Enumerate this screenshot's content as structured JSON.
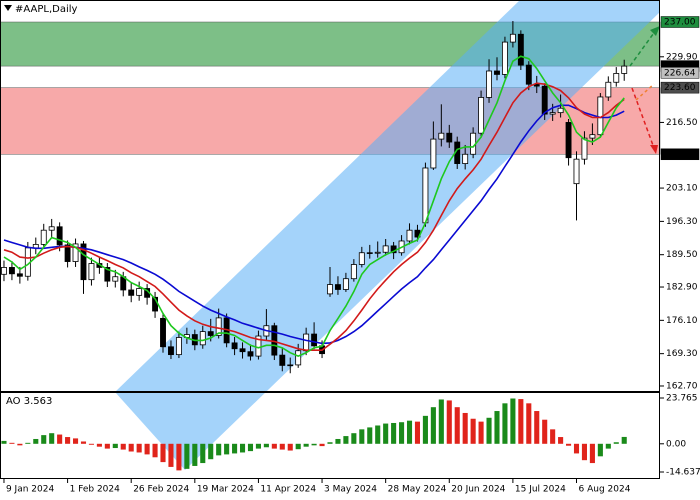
{
  "chart_data": [
    {
      "type": "candlestick",
      "title": "#AAPL,Daily",
      "xlim": [
        -0.5,
        82.5
      ],
      "xticks": [
        {
          "value": 0,
          "label": "9 Jan 2024"
        },
        {
          "value": 8,
          "label": "1 Feb 2024"
        },
        {
          "value": 16,
          "label": "26 Feb 2024"
        },
        {
          "value": 24,
          "label": "19 Mar 2024"
        },
        {
          "value": 32,
          "label": "11 Apr 2024"
        },
        {
          "value": 40,
          "label": "3 May 2024"
        },
        {
          "value": 48,
          "label": "28 May 2024"
        },
        {
          "value": 56,
          "label": "20 Jun 2024"
        },
        {
          "value": 64,
          "label": "15 Jul 2024"
        },
        {
          "value": 72,
          "label": "6 Aug 2024"
        }
      ],
      "ylim": [
        161.88,
        240.88
      ],
      "yticks": [
        {
          "value": 162.7,
          "label": "162.70"
        },
        {
          "value": 169.3,
          "label": "169.30"
        },
        {
          "value": 176.1,
          "label": "176.10"
        },
        {
          "value": 182.9,
          "label": "182.90"
        },
        {
          "value": 189.5,
          "label": "189.50"
        },
        {
          "value": 196.3,
          "label": "196.30"
        },
        {
          "value": 203.1,
          "label": "203.10"
        },
        {
          "value": 216.5,
          "label": "216.50"
        },
        {
          "value": 229.9,
          "label": "229.90"
        }
      ],
      "levels": [
        {
          "value": 237,
          "label": "237.00",
          "color": "#1e8e3e"
        },
        {
          "value": 228,
          "label": "228.00",
          "color": "#000000"
        },
        {
          "value": 226.64,
          "label": "226.64",
          "color": "#c0c0c0"
        },
        {
          "value": 223.6,
          "label": "223.60",
          "color": "#4d4d4d"
        },
        {
          "value": 210,
          "label": "210.00",
          "color": "#000000"
        }
      ],
      "zones": [
        {
          "from": 228,
          "to": 237,
          "color": "#7dbf87"
        },
        {
          "from": 210,
          "to": 223.6,
          "color": "#f7a9a9"
        }
      ],
      "up_color": "#ffffff",
      "down_color": "#000000",
      "open": [
        185.5,
        186.9,
        185.6,
        185.1,
        190.9,
        191.6,
        194.5,
        195.2,
        191.5,
        188.1,
        191.7,
        184.4,
        187.7,
        186.9,
        184.1,
        185.0,
        182.3,
        181.2,
        182.6,
        180.8,
        176.5,
        170.7,
        169.1,
        172.6,
        173.2,
        171.1,
        173.8,
        173.0,
        176.6,
        171.5,
        170.3,
        169.7,
        168.8,
        172.9,
        175.0,
        169.0,
        166.9,
        167.0,
        169.9,
        173.3,
        170.9,
        181.5,
        183.4,
        182.4,
        184.6,
        187.5,
        189.9,
        189.8,
        190.0,
        191.3,
        189.9,
        192.3,
        194.5,
        196.0,
        207.2,
        213.1,
        214.3,
        212.5,
        208.1,
        210.0,
        214.3,
        221.6,
        227.0,
        226.3,
        232.9,
        234.5,
        228.2,
        224.3,
        223.9,
        218.2,
        218.5,
        216.5,
        204.0,
        209.0,
        213.3,
        214.0,
        221.7,
        224.7,
        226.5
      ],
      "high": [
        188.3,
        188.2,
        187.0,
        192.1,
        193.0,
        195.8,
        196.8,
        196.1,
        192.4,
        192.8,
        192.3,
        188.9,
        189.0,
        187.8,
        186.4,
        186.0,
        183.7,
        184.0,
        183.5,
        181.9,
        177.5,
        172.0,
        173.8,
        174.6,
        174.2,
        175.0,
        176.4,
        178.5,
        177.5,
        172.7,
        171.6,
        171.2,
        174.0,
        178.4,
        175.6,
        170.4,
        168.5,
        171.3,
        174.6,
        175.7,
        172.0,
        187.0,
        185.1,
        185.8,
        188.6,
        191.1,
        191.5,
        192.2,
        192.7,
        192.1,
        193.5,
        195.9,
        195.6,
        208.3,
        216.7,
        220.2,
        216.0,
        213.6,
        211.9,
        215.5,
        223.0,
        229.4,
        229.8,
        234.0,
        237.2,
        235.3,
        229.0,
        226.0,
        224.5,
        220.3,
        222.2,
        217.2,
        210.6,
        214.7,
        216.3,
        222.5,
        225.9,
        227.8,
        229.3
      ],
      "low": [
        184.1,
        184.3,
        183.6,
        184.2,
        189.6,
        190.8,
        193.1,
        190.2,
        186.9,
        187.0,
        181.5,
        183.2,
        185.6,
        182.9,
        182.8,
        181.0,
        179.8,
        180.1,
        179.3,
        176.6,
        169.5,
        168.2,
        168.4,
        171.3,
        170.0,
        170.3,
        171.8,
        172.4,
        170.6,
        169.0,
        168.3,
        167.9,
        168.1,
        172.0,
        168.0,
        165.7,
        165.3,
        166.4,
        169.0,
        170.2,
        168.4,
        180.9,
        181.3,
        181.9,
        184.0,
        186.9,
        188.7,
        188.9,
        189.3,
        188.6,
        189.3,
        191.6,
        192.2,
        195.2,
        206.8,
        211.6,
        211.3,
        207.0,
        206.9,
        209.2,
        213.5,
        220.5,
        225.1,
        225.5,
        231.8,
        227.2,
        223.1,
        222.5,
        217.0,
        216.8,
        217.5,
        207.7,
        196.5,
        207.9,
        211.9,
        213.4,
        220.9,
        223.8,
        225.0
      ],
      "close": [
        186.9,
        185.6,
        185.1,
        190.9,
        191.6,
        194.5,
        195.2,
        191.5,
        188.1,
        191.7,
        184.4,
        187.7,
        186.9,
        184.1,
        185.0,
        182.3,
        181.2,
        182.6,
        180.8,
        178.0,
        170.7,
        169.1,
        172.6,
        173.2,
        171.1,
        173.8,
        173.0,
        176.6,
        171.5,
        170.3,
        169.7,
        168.8,
        172.9,
        175.0,
        169.0,
        166.9,
        167.0,
        169.9,
        173.3,
        170.9,
        169.3,
        183.4,
        182.4,
        184.6,
        187.5,
        189.9,
        189.8,
        190.0,
        191.3,
        189.9,
        192.3,
        194.5,
        193.1,
        207.2,
        213.1,
        214.3,
        212.5,
        208.1,
        210.0,
        214.3,
        221.6,
        227.0,
        226.3,
        232.9,
        234.5,
        228.2,
        224.3,
        223.9,
        218.2,
        218.5,
        219.4,
        209.3,
        209.0,
        213.3,
        214.0,
        221.7,
        224.7,
        226.5,
        228.0
      ],
      "lines": [
        {
          "color": "#0a0ad2",
          "values": [
            192.5,
            192,
            191.5,
            191,
            190.8,
            190.8,
            191,
            191.2,
            191.2,
            191,
            190.8,
            190.5,
            190,
            189.5,
            189,
            188.5,
            187.8,
            187,
            186.3,
            185.5,
            184.5,
            183.3,
            182,
            181,
            180,
            179,
            178.2,
            177.5,
            176.8,
            176.2,
            175.5,
            175,
            174.5,
            174,
            173.7,
            173.3,
            172.8,
            172.4,
            172,
            171.7,
            171.4,
            171.5,
            172,
            172.8,
            173.8,
            175,
            176.5,
            178,
            179.5,
            181,
            182.5,
            183.8,
            185,
            186.8,
            188.5,
            190.5,
            192.5,
            194.5,
            196.5,
            198.5,
            200.5,
            202.8,
            205,
            207.5,
            210,
            212.5,
            214.8,
            216.8,
            218.5,
            219.5,
            220,
            220,
            219.3,
            218.5,
            218,
            217.5,
            217.5,
            218,
            218.8
          ]
        },
        {
          "color": "#d21a1a",
          "values": [
            190.5,
            190,
            189,
            188.8,
            189,
            189.8,
            190.5,
            191,
            191.2,
            191,
            190.5,
            189.8,
            189,
            188.3,
            187.5,
            186.8,
            185.8,
            185,
            184,
            183,
            181.5,
            179.8,
            178.2,
            177,
            176,
            175.3,
            174.8,
            174.5,
            174.2,
            173.8,
            173.2,
            172.6,
            172.2,
            172,
            171.8,
            171.3,
            170.8,
            170.3,
            170,
            170,
            170,
            171.2,
            172.5,
            174,
            176,
            178.2,
            180.5,
            182.5,
            184.3,
            186,
            187.5,
            188.8,
            190,
            192,
            194.5,
            197.5,
            200.5,
            203,
            205,
            206.8,
            209,
            211.8,
            214.5,
            217.5,
            220.5,
            222.5,
            223.8,
            224.5,
            224.3,
            223.8,
            223,
            221.5,
            219.5,
            218.2,
            217.5,
            217.5,
            218.5,
            220,
            221.2
          ]
        },
        {
          "color": "#1ec81e",
          "values": [
            189,
            188,
            186.5,
            187.5,
            189,
            191,
            193,
            192.5,
            192,
            191,
            189.5,
            188.5,
            187.5,
            186.5,
            186,
            185,
            183.8,
            183,
            182.2,
            180.5,
            177.5,
            175,
            173.5,
            172.5,
            172,
            172,
            172.5,
            173.5,
            173.5,
            173,
            172,
            171,
            170.5,
            171,
            171,
            170.5,
            169.5,
            168.8,
            169.5,
            170.5,
            170.8,
            174,
            176.5,
            179,
            182,
            185.5,
            187.5,
            188.5,
            189.5,
            190.2,
            191,
            191.8,
            192.5,
            196,
            200.5,
            205,
            208.5,
            211,
            211.5,
            211.5,
            213.5,
            217,
            220.5,
            225,
            229,
            230,
            229.5,
            227.5,
            225,
            222.5,
            220.5,
            218,
            214.5,
            213,
            212.5,
            213.5,
            216.5,
            219.5,
            221.5
          ]
        }
      ]
    },
    {
      "type": "bar",
      "title": "AO 3.563",
      "ylim": [
        -17.75,
        25.84
      ],
      "yticks": [
        23.765,
        {
          "value": 0,
          "label": "0.00"
        },
        -14.637
      ],
      "up_color": "#1a8a1a",
      "down_color": "#e0241b",
      "values": [
        1.5,
        0.5,
        -0.8,
        0.5,
        2.5,
        4.5,
        5.5,
        4.8,
        3.5,
        2.8,
        1.2,
        -0.5,
        -1.5,
        -2.5,
        -2.2,
        -3.0,
        -4.0,
        -4.5,
        -5.5,
        -7.0,
        -9.5,
        -12.0,
        -13.8,
        -13.0,
        -11.5,
        -10.0,
        -8.0,
        -6.0,
        -5.5,
        -5.0,
        -4.5,
        -3.8,
        -2.5,
        -1.8,
        -2.5,
        -3.0,
        -3.5,
        -2.8,
        -1.5,
        -0.8,
        -1.2,
        0.8,
        2.5,
        4.0,
        5.5,
        7.5,
        8.5,
        9.5,
        10.5,
        10.8,
        11.2,
        12.0,
        11.5,
        14.5,
        19.0,
        23.0,
        22.5,
        19.0,
        16.0,
        13.0,
        11.5,
        13.5,
        17.0,
        21.0,
        23.5,
        23.2,
        21.0,
        17.0,
        12.5,
        7.5,
        3.5,
        -1.0,
        -5.0,
        -8.5,
        -10.0,
        -6.5,
        -2.5,
        0.8,
        3.563
      ]
    }
  ]
}
